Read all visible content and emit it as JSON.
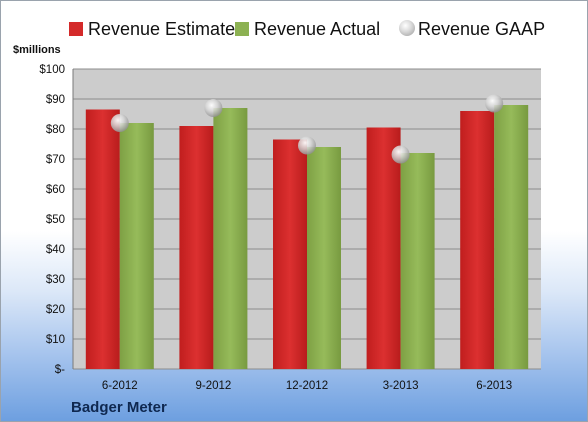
{
  "legend": {
    "estimate": "Revenue Estimate",
    "actual": "Revenue Actual",
    "gaap": "Revenue GAAP"
  },
  "unit_label": "$millions",
  "company": "Badger Meter",
  "colors": {
    "estimate": "#d42a2a",
    "actual": "#8cb152",
    "gaap": "#c8c8c8",
    "plot_bg": "#cccccc"
  },
  "chart_data": {
    "type": "bar",
    "categories": [
      "6-2012",
      "9-2012",
      "12-2012",
      "3-2013",
      "6-2013"
    ],
    "series": [
      {
        "name": "Revenue Estimate",
        "kind": "bar",
        "values": [
          86.5,
          81,
          76.5,
          80.5,
          86
        ]
      },
      {
        "name": "Revenue Actual",
        "kind": "bar",
        "values": [
          82,
          87,
          74,
          72,
          88
        ]
      },
      {
        "name": "Revenue GAAP",
        "kind": "marker",
        "values": [
          82,
          87,
          74.5,
          71.5,
          88.5
        ]
      }
    ],
    "ylabel": "$millions",
    "ylim": [
      0,
      100
    ],
    "yticks": [
      0,
      10,
      20,
      30,
      40,
      50,
      60,
      70,
      80,
      90,
      100
    ],
    "ytick_labels": [
      "$-",
      "$10",
      "$20",
      "$30",
      "$40",
      "$50",
      "$60",
      "$70",
      "$80",
      "$90",
      "$100"
    ],
    "grid": true,
    "legend_position": "top"
  }
}
